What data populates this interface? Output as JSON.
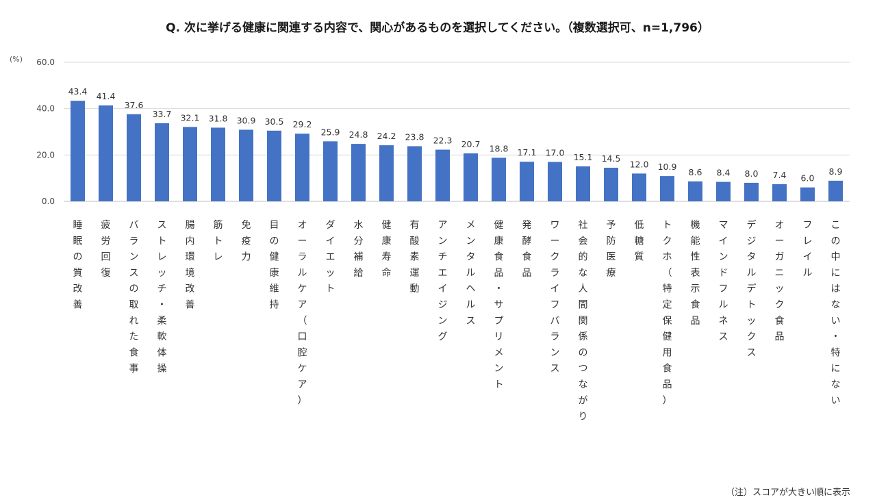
{
  "title": "Q. 次に挙げる健康に関連する内容で、関心があるものを選択してください。（複数選択可、n=1,796）",
  "note": "（注）スコアが大きい順に表示",
  "chart_data": {
    "type": "bar",
    "unit_label": "(%)",
    "ylim": [
      0,
      60
    ],
    "yticks": [
      "60.0",
      "40.0",
      "20.0",
      "0.0"
    ],
    "ytick_values": [
      60,
      40,
      20,
      0
    ],
    "grid": true,
    "bar_color": "#4472C4",
    "categories": [
      "睡眠の質改善",
      "疲労回復",
      "バランスの取れた食事",
      "ストレッチ・柔軟体操",
      "腸内環境改善",
      "筋トレ",
      "免疫力",
      "目の健康維持",
      "オーラルケア（口腔ケア）",
      "ダイエット",
      "水分補給",
      "健康寿命",
      "有酸素運動",
      "アンチエイジング",
      "メンタルヘルス",
      "健康食品・サプリメント",
      "発酵食品",
      "ワークライフバランス",
      "社会的な人間関係のつながり",
      "予防医療",
      "低糖質",
      "トクホ（特定保健用食品）",
      "機能性表示食品",
      "マインドフルネス",
      "デジタルデトックス",
      "オーガニック食品",
      "フレイル",
      "この中にはない・特にない"
    ],
    "values": [
      43.4,
      41.4,
      37.6,
      33.7,
      32.1,
      31.8,
      30.9,
      30.5,
      29.2,
      25.9,
      24.8,
      24.2,
      23.8,
      22.3,
      20.7,
      18.8,
      17.1,
      17.0,
      15.1,
      14.5,
      12.0,
      10.9,
      8.6,
      8.4,
      8.0,
      7.4,
      6.0,
      8.9
    ],
    "value_labels": [
      "43.4",
      "41.4",
      "37.6",
      "33.7",
      "32.1",
      "31.8",
      "30.9",
      "30.5",
      "29.2",
      "25.9",
      "24.8",
      "24.2",
      "23.8",
      "22.3",
      "20.7",
      "18.8",
      "17.1",
      "17.0",
      "15.1",
      "14.5",
      "12.0",
      "10.9",
      "8.6",
      "8.4",
      "8.0",
      "7.4",
      "6.0",
      "8.9"
    ]
  }
}
